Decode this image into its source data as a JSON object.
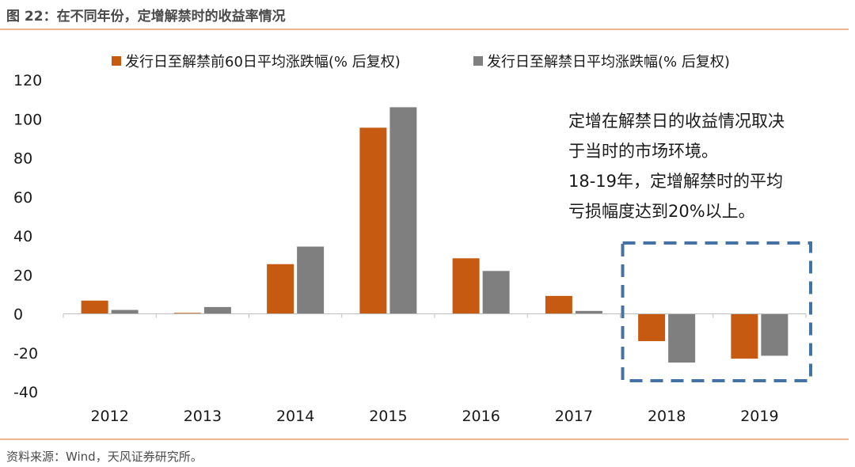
{
  "figure_title": "图 22：在不同年份，定增解禁时的收益率情况",
  "source_note": "资料来源：Wind，天风证券研究所。",
  "annotation_lines": [
    "定增在解禁日的收益情况取决",
    "于当时的市场环境。",
    "18-19年，定增解禁时的平均",
    "亏损幅度达到20%以上。"
  ],
  "colors": {
    "series1": "#c65a11",
    "series2": "#7f7f7f",
    "highlight_box": "#4472a4",
    "rule": "#f2b48a"
  },
  "chart_data": {
    "type": "bar",
    "categories": [
      "2012",
      "2013",
      "2014",
      "2015",
      "2016",
      "2017",
      "2018",
      "2019"
    ],
    "series": [
      {
        "name": "发行日至解禁前60日平均涨跌幅(% 后复权)",
        "values": [
          6.8,
          0.5,
          25.5,
          95.5,
          28.5,
          9.2,
          -14.0,
          -23.0
        ]
      },
      {
        "name": "发行日至解禁日平均涨跌幅(% 后复权)",
        "values": [
          2.0,
          3.5,
          34.5,
          106.0,
          22.0,
          1.5,
          -25.0,
          -21.5
        ]
      }
    ],
    "ylim": [
      -40,
      120
    ],
    "yticks": [
      -40,
      -20,
      0,
      20,
      40,
      60,
      80,
      100,
      120
    ],
    "legend_position": "top",
    "grid": false,
    "highlight": {
      "categories": [
        "2018",
        "2019"
      ],
      "style": "dashed box"
    }
  }
}
